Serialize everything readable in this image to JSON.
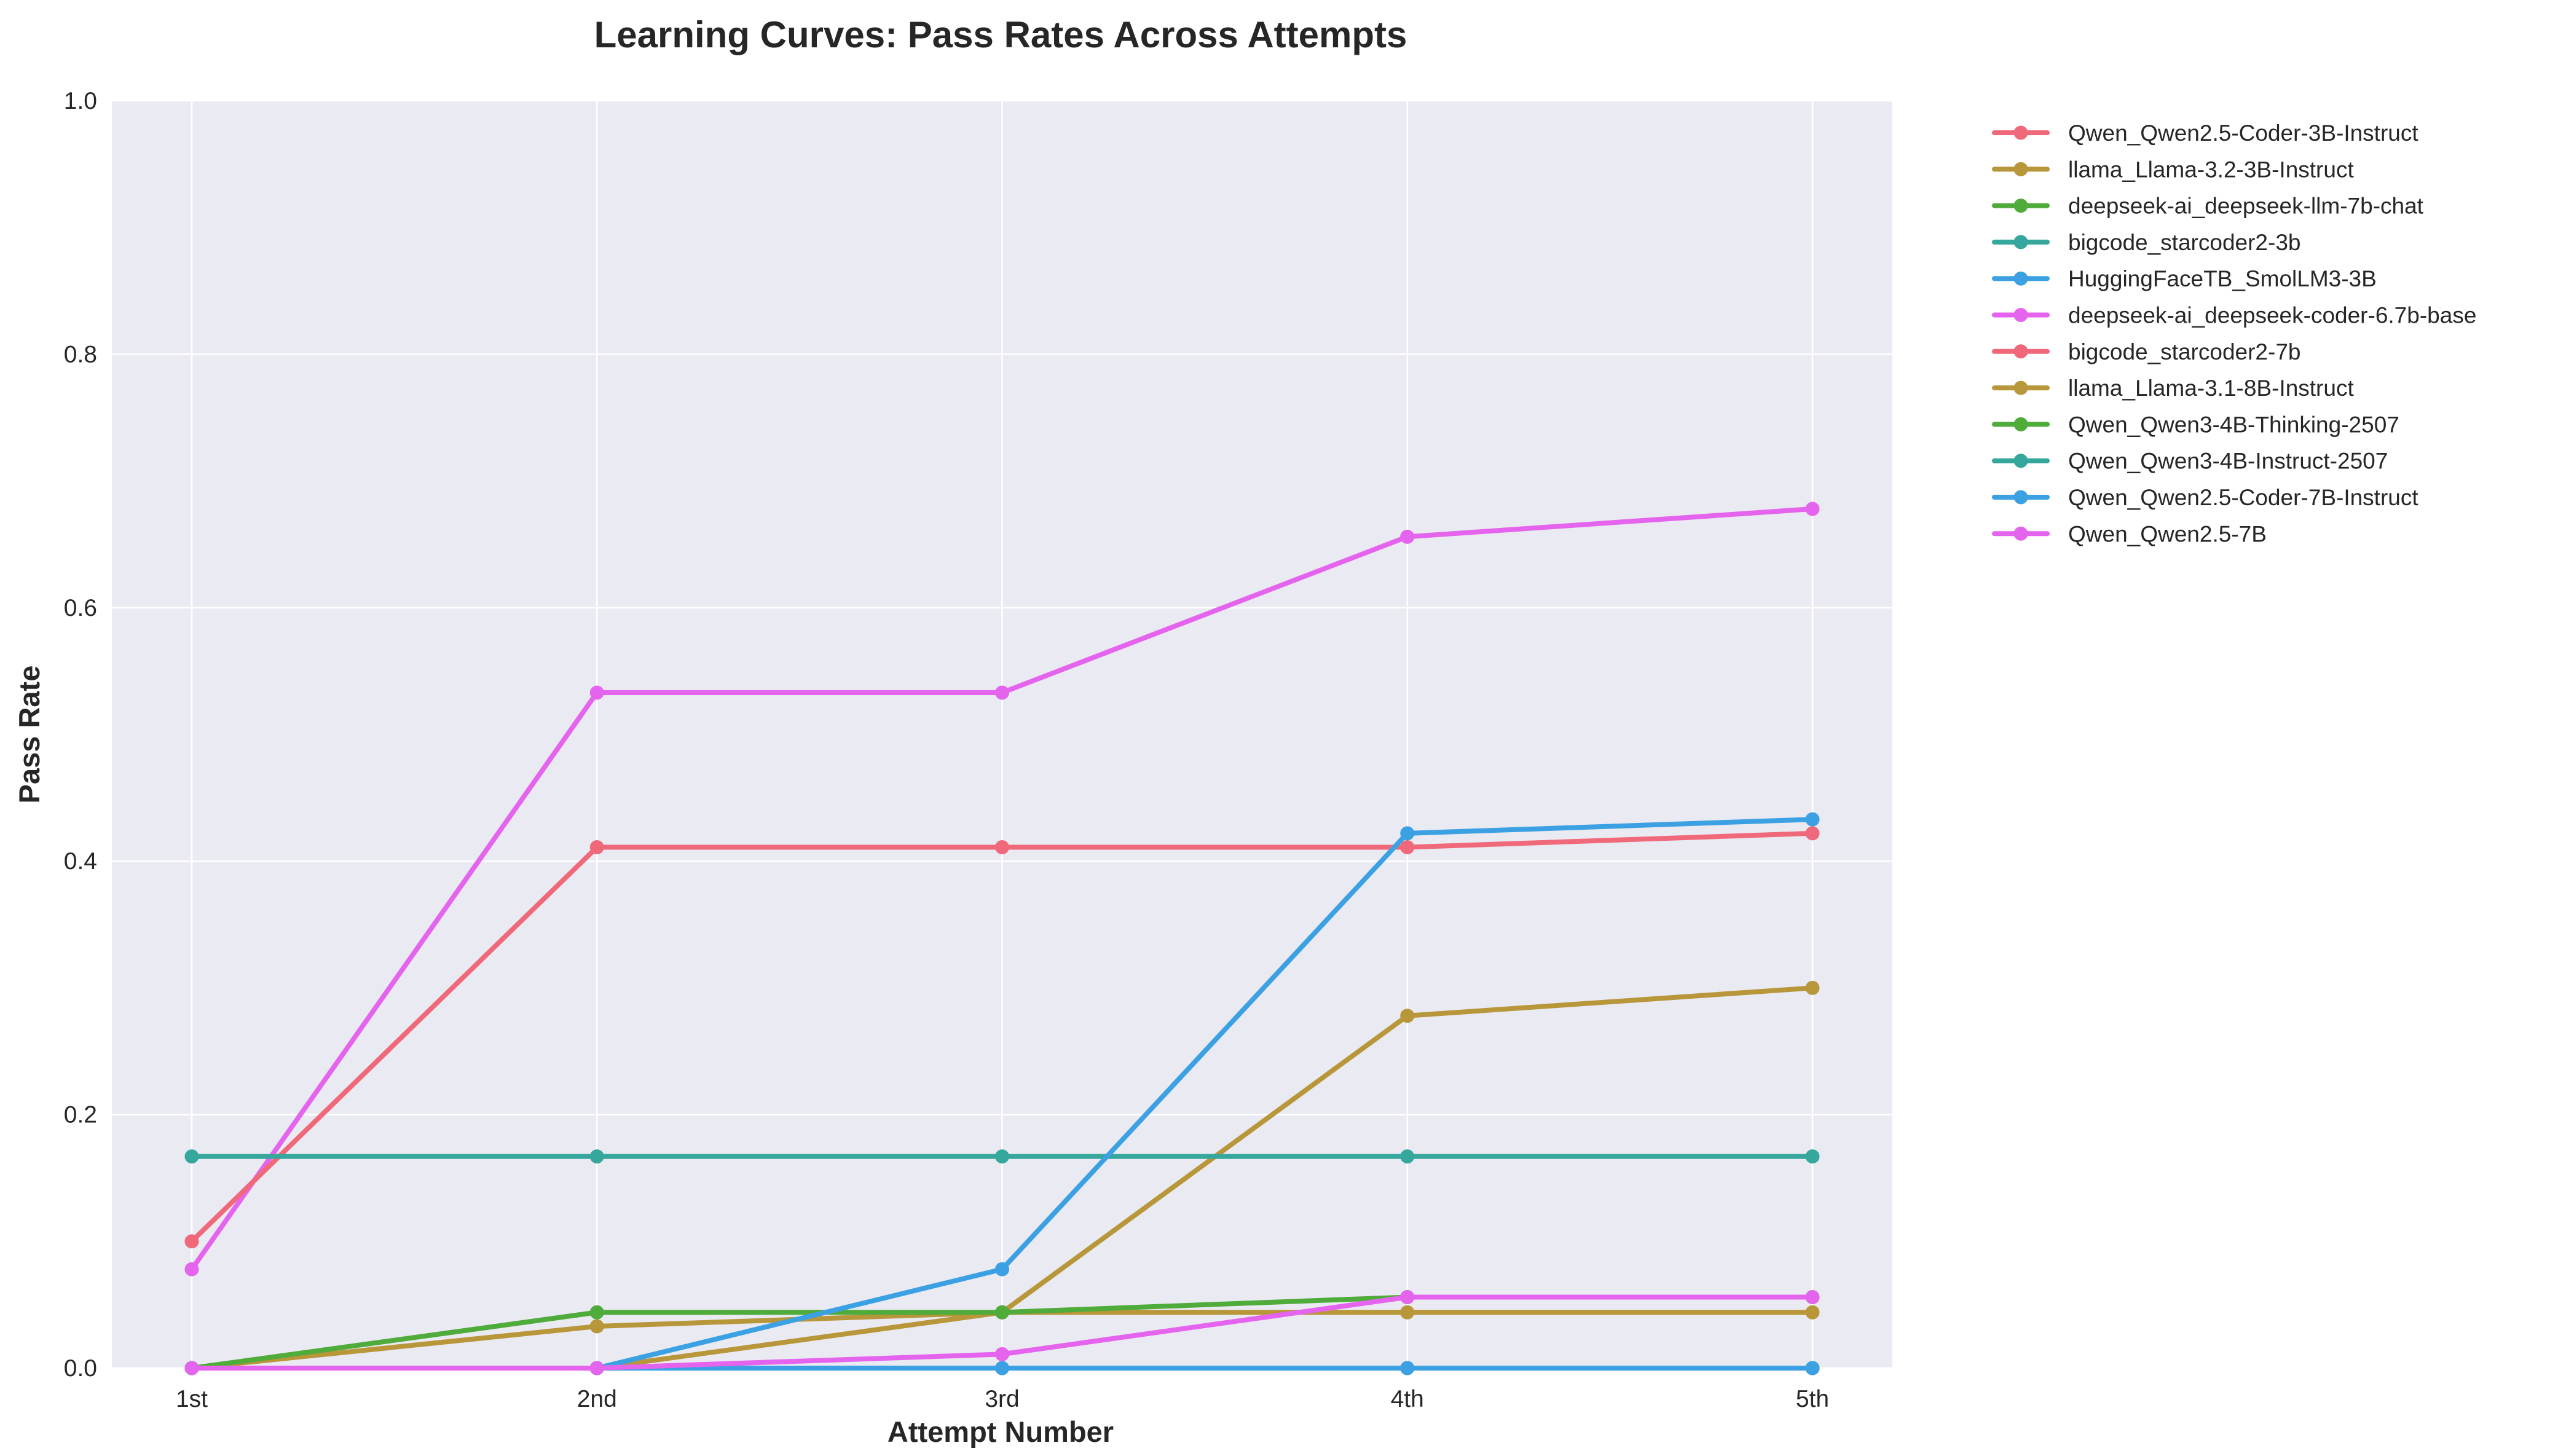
{
  "chart_data": {
    "type": "line",
    "title": "Learning Curves: Pass Rates Across Attempts",
    "xlabel": "Attempt Number",
    "ylabel": "Pass Rate",
    "categories": [
      "1st",
      "2nd",
      "3rd",
      "4th",
      "5th"
    ],
    "ylim": [
      0,
      1.0
    ],
    "yticks": [
      0.0,
      0.2,
      0.4,
      0.6,
      0.8,
      1.0
    ],
    "ytick_labels": [
      "0.0",
      "0.2",
      "0.4",
      "0.6",
      "0.8",
      "1.0"
    ],
    "grid": true,
    "legend_position": "outside-right",
    "background": "#eaeaf2",
    "series": [
      {
        "name": "Qwen_Qwen2.5-Coder-3B-Instruct",
        "color": "#f0697a",
        "values": [
          0.0,
          0.0,
          0.0,
          0.0,
          0.0
        ]
      },
      {
        "name": "llama_Llama-3.2-3B-Instruct",
        "color": "#b8963a",
        "values": [
          0.0,
          0.0,
          0.044,
          0.044,
          0.044
        ]
      },
      {
        "name": "deepseek-ai_deepseek-llm-7b-chat",
        "color": "#4fab3a",
        "values": [
          0.0,
          0.0,
          0.0,
          0.0,
          0.0
        ]
      },
      {
        "name": "bigcode_starcoder2-3b",
        "color": "#36a79c",
        "values": [
          0.0,
          0.0,
          0.0,
          0.0,
          0.0
        ]
      },
      {
        "name": "HuggingFaceTB_SmolLM3-3B",
        "color": "#3ca1e3",
        "values": [
          0.0,
          0.0,
          0.0,
          0.0,
          0.0
        ]
      },
      {
        "name": "deepseek-ai_deepseek-coder-6.7b-base",
        "color": "#e564ee",
        "values": [
          0.078,
          0.533,
          0.533,
          0.656,
          0.678
        ]
      },
      {
        "name": "bigcode_starcoder2-7b",
        "color": "#f0697a",
        "values": [
          0.1,
          0.411,
          0.411,
          0.411,
          0.422
        ]
      },
      {
        "name": "llama_Llama-3.1-8B-Instruct",
        "color": "#b8963a",
        "values": [
          0.0,
          0.033,
          0.044,
          0.278,
          0.3
        ]
      },
      {
        "name": "Qwen_Qwen3-4B-Thinking-2507",
        "color": "#4fab3a",
        "values": [
          0.0,
          0.044,
          0.044,
          0.056,
          0.056
        ]
      },
      {
        "name": "Qwen_Qwen3-4B-Instruct-2507",
        "color": "#36a79c",
        "values": [
          0.167,
          0.167,
          0.167,
          0.167,
          0.167
        ]
      },
      {
        "name": "Qwen_Qwen2.5-Coder-7B-Instruct",
        "color": "#3ca1e3",
        "values": [
          0.0,
          0.0,
          0.078,
          0.422,
          0.433
        ]
      },
      {
        "name": "Qwen_Qwen2.5-7B",
        "color": "#e564ee",
        "values": [
          0.0,
          0.0,
          0.011,
          0.056,
          0.056
        ]
      }
    ]
  }
}
